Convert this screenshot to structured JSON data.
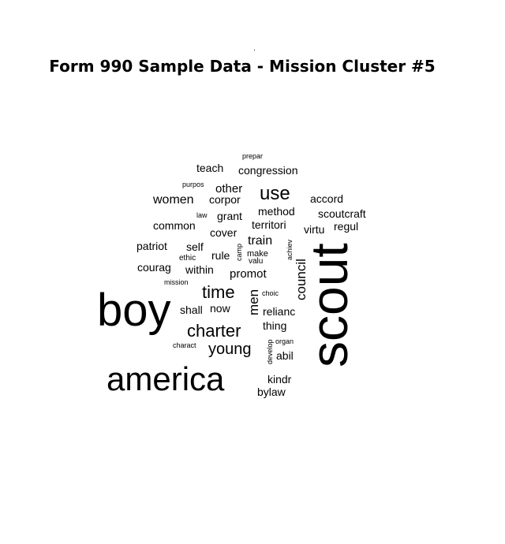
{
  "marker": ".",
  "chart_data": {
    "type": "wordcloud",
    "title": "Form 990 Sample Data - Mission Cluster #5",
    "color": "#000000",
    "words": [
      {
        "text": "scout",
        "weight": 100
      },
      {
        "text": "boy",
        "weight": 86
      },
      {
        "text": "america",
        "weight": 72
      },
      {
        "text": "time",
        "weight": 38
      },
      {
        "text": "charter",
        "weight": 38
      },
      {
        "text": "use",
        "weight": 34
      },
      {
        "text": "young",
        "weight": 32
      },
      {
        "text": "council",
        "weight": 29
      },
      {
        "text": "men",
        "weight": 28
      },
      {
        "text": "women",
        "weight": 26
      },
      {
        "text": "train",
        "weight": 26
      },
      {
        "text": "promot",
        "weight": 26
      },
      {
        "text": "other",
        "weight": 26
      },
      {
        "text": "teach",
        "weight": 24
      },
      {
        "text": "congression",
        "weight": 24
      },
      {
        "text": "corpor",
        "weight": 24
      },
      {
        "text": "accord",
        "weight": 24
      },
      {
        "text": "method",
        "weight": 24
      },
      {
        "text": "grant",
        "weight": 24
      },
      {
        "text": "territori",
        "weight": 24
      },
      {
        "text": "scoutcraft",
        "weight": 24
      },
      {
        "text": "common",
        "weight": 24
      },
      {
        "text": "cover",
        "weight": 24
      },
      {
        "text": "virtu",
        "weight": 24
      },
      {
        "text": "regul",
        "weight": 24
      },
      {
        "text": "patriot",
        "weight": 24
      },
      {
        "text": "self",
        "weight": 24
      },
      {
        "text": "rule",
        "weight": 24
      },
      {
        "text": "courag",
        "weight": 24
      },
      {
        "text": "within",
        "weight": 24
      },
      {
        "text": "shall",
        "weight": 24
      },
      {
        "text": "now",
        "weight": 24
      },
      {
        "text": "relianc",
        "weight": 24
      },
      {
        "text": "thing",
        "weight": 24
      },
      {
        "text": "abil",
        "weight": 24
      },
      {
        "text": "kindr",
        "weight": 24
      },
      {
        "text": "bylaw",
        "weight": 24
      },
      {
        "text": "make",
        "weight": 18
      },
      {
        "text": "valu",
        "weight": 16
      },
      {
        "text": "camp",
        "weight": 16
      },
      {
        "text": "achiev",
        "weight": 16
      },
      {
        "text": "ethic",
        "weight": 16
      },
      {
        "text": "mission",
        "weight": 16
      },
      {
        "text": "choic",
        "weight": 16
      },
      {
        "text": "organ",
        "weight": 16
      },
      {
        "text": "develop",
        "weight": 16
      },
      {
        "text": "charact",
        "weight": 16
      },
      {
        "text": "law",
        "weight": 16
      },
      {
        "text": "purpos",
        "weight": 16
      },
      {
        "text": "prepar",
        "weight": 16
      }
    ]
  }
}
